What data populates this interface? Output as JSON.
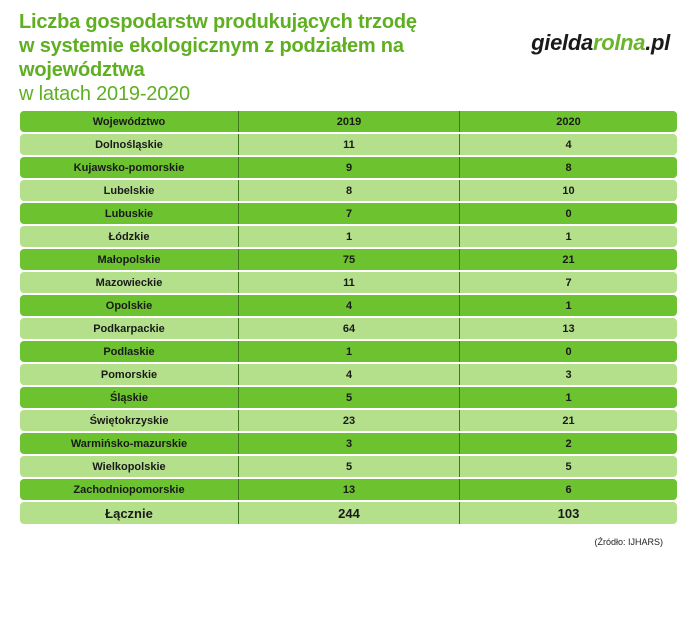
{
  "title": {
    "line1": "Liczba gospodarstw produkujących trzodę",
    "line2": "w systemie ekologicznym z podziałem na województwa",
    "line3": "w latach 2019-2020"
  },
  "logo": {
    "part1": "gielda",
    "part2": "rolna",
    "part3": ".pl"
  },
  "source": "(Źródło: IJHARS)",
  "colors": {
    "dark_row": "#6cc22f",
    "light_row": "#b5e08b",
    "title": "#5fb021"
  },
  "chart_data": {
    "type": "table",
    "columns": [
      "Województwo",
      "2019",
      "2020"
    ],
    "rows": [
      [
        "Dolnośląskie",
        "11",
        "4"
      ],
      [
        "Kujawsko-pomorskie",
        "9",
        "8"
      ],
      [
        "Lubelskie",
        "8",
        "10"
      ],
      [
        "Lubuskie",
        "7",
        "0"
      ],
      [
        "Łódzkie",
        "1",
        "1"
      ],
      [
        "Małopolskie",
        "75",
        "21"
      ],
      [
        "Mazowieckie",
        "11",
        "7"
      ],
      [
        "Opolskie",
        "4",
        "1"
      ],
      [
        "Podkarpackie",
        "64",
        "13"
      ],
      [
        "Podlaskie",
        "1",
        "0"
      ],
      [
        "Pomorskie",
        "4",
        "3"
      ],
      [
        "Śląskie",
        "5",
        "1"
      ],
      [
        "Świętokrzyskie",
        "23",
        "21"
      ],
      [
        "Warmińsko-mazurskie",
        "3",
        "2"
      ],
      [
        "Wielkopolskie",
        "5",
        "5"
      ],
      [
        "Zachodniopomorskie",
        "13",
        "6"
      ]
    ],
    "total": [
      "Łącznie",
      "244",
      "103"
    ]
  }
}
